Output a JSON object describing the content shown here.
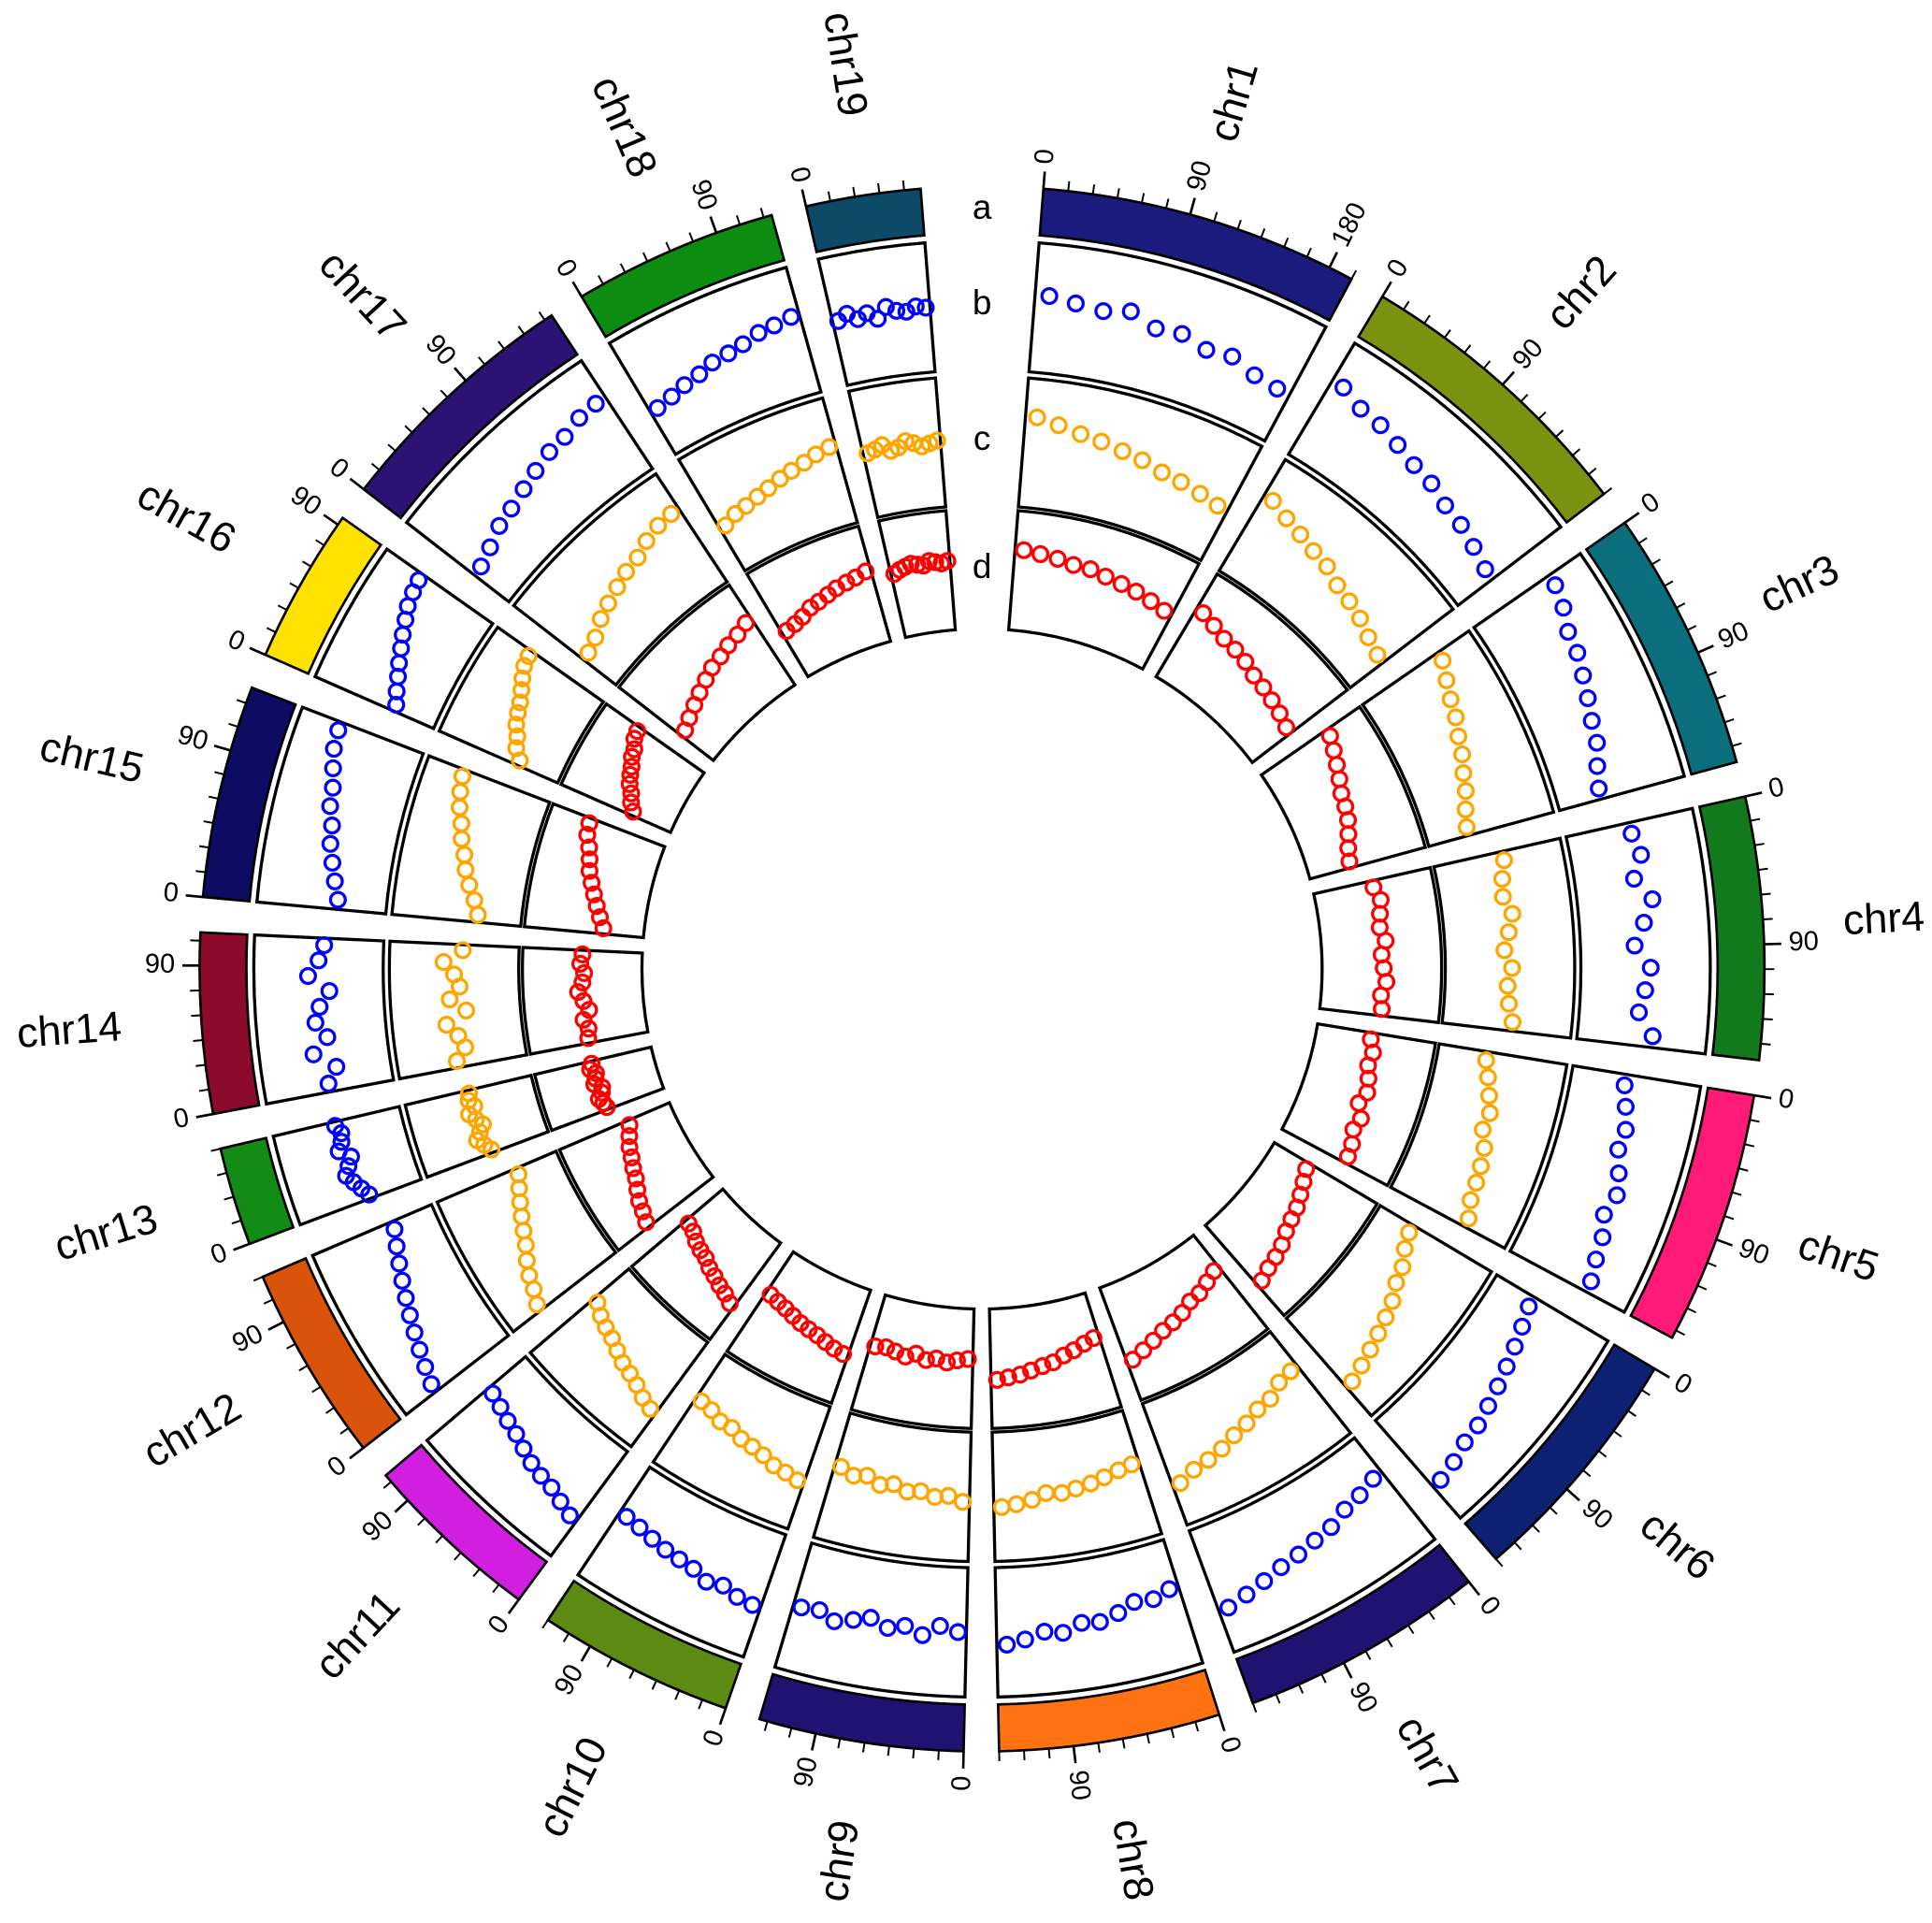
{
  "chart_data": {
    "type": "circos",
    "ideogram_label": "a",
    "minor_tick_interval": 15,
    "chromosomes": [
      {
        "name": "chr1",
        "length": 195,
        "color": "#1b1b7e",
        "ticks": [
          0,
          90,
          180
        ],
        "x": [
          10,
          29,
          49,
          68,
          88,
          107,
          127,
          146,
          166,
          185
        ]
      },
      {
        "name": "chr2",
        "length": 180,
        "color": "#7b9210",
        "ticks": [
          0,
          90
        ],
        "x": [
          9,
          27,
          45,
          63,
          81,
          99,
          117,
          135,
          153,
          171
        ]
      },
      {
        "name": "chr3",
        "length": 160,
        "color": "#0a6e7c",
        "ticks": [
          0,
          90
        ],
        "x": [
          8,
          24,
          40,
          56,
          72,
          88,
          104,
          120,
          136,
          152
        ]
      },
      {
        "name": "chr4",
        "length": 160,
        "color": "#127a1c",
        "ticks": [
          0,
          90
        ],
        "x": [
          8,
          24,
          40,
          56,
          72,
          88,
          104,
          120,
          136,
          152
        ]
      },
      {
        "name": "chr5",
        "length": 155,
        "color": "#ff1a78",
        "ticks": [
          0,
          90
        ],
        "x": [
          8,
          23,
          39,
          54,
          70,
          85,
          101,
          116,
          132,
          147
        ]
      },
      {
        "name": "chr6",
        "length": 150,
        "color": "#0d2072",
        "ticks": [
          0,
          90
        ],
        "x": [
          8,
          23,
          38,
          53,
          68,
          83,
          98,
          113,
          128,
          143
        ]
      },
      {
        "name": "chr7",
        "length": 150,
        "color": "#1f1270",
        "ticks": [
          0,
          90
        ],
        "x": [
          8,
          23,
          38,
          53,
          68,
          83,
          98,
          113,
          128,
          143
        ]
      },
      {
        "name": "chr8",
        "length": 135,
        "color": "#ff7212",
        "ticks": [
          0,
          90
        ],
        "x": [
          7,
          20,
          34,
          47,
          61,
          74,
          88,
          101,
          115,
          128
        ]
      },
      {
        "name": "chr9",
        "length": 125,
        "color": "#1f1270",
        "ticks": [
          0,
          90
        ],
        "x": [
          6,
          19,
          31,
          44,
          56,
          69,
          81,
          94,
          106,
          119
        ]
      },
      {
        "name": "chr10",
        "length": 120,
        "color": "#5c8a12",
        "ticks": [
          0,
          90
        ],
        "x": [
          6,
          18,
          30,
          42,
          54,
          66,
          78,
          90,
          102,
          114
        ]
      },
      {
        "name": "chr11",
        "length": 110,
        "color": "#d21ee0",
        "ticks": [
          0,
          90
        ],
        "x": [
          6,
          17,
          28,
          39,
          50,
          61,
          72,
          83,
          94,
          105
        ]
      },
      {
        "name": "chr12",
        "length": 120,
        "color": "#d9540a",
        "ticks": [
          0,
          90
        ],
        "x": [
          6,
          18,
          30,
          42,
          54,
          66,
          78,
          90,
          102,
          114
        ]
      },
      {
        "name": "chr13",
        "length": 60,
        "color": "#128c14",
        "ticks": [
          0
        ],
        "x": [
          3,
          9,
          15,
          21,
          27,
          33,
          39,
          45,
          51,
          57
        ]
      },
      {
        "name": "chr14",
        "length": 110,
        "color": "#8c0a2c",
        "ticks": [
          0,
          90
        ],
        "x": [
          6,
          17,
          28,
          39,
          50,
          61,
          72,
          83,
          94,
          105
        ]
      },
      {
        "name": "chr15",
        "length": 130,
        "color": "#0c0c62",
        "ticks": [
          0,
          90
        ],
        "x": [
          7,
          20,
          33,
          46,
          59,
          72,
          85,
          98,
          111,
          124
        ]
      },
      {
        "name": "chr16",
        "length": 95,
        "color": "#ffe200",
        "ticks": [
          0,
          90
        ],
        "x": [
          5,
          14,
          24,
          33,
          43,
          52,
          62,
          71,
          81,
          90
        ]
      },
      {
        "name": "chr17",
        "length": 155,
        "color": "#2c1272",
        "ticks": [
          0,
          90
        ],
        "x": [
          8,
          23,
          39,
          54,
          70,
          85,
          101,
          116,
          132,
          147
        ]
      },
      {
        "name": "chr18",
        "length": 125,
        "color": "#0c8c10",
        "ticks": [
          0,
          90
        ],
        "x": [
          6,
          19,
          31,
          44,
          56,
          69,
          81,
          94,
          106,
          119
        ]
      },
      {
        "name": "chr19",
        "length": 70,
        "color": "#0c4a68",
        "ticks": [
          0
        ],
        "x": [
          4,
          11,
          18,
          25,
          32,
          39,
          46,
          53,
          60,
          67
        ]
      }
    ],
    "tracks": [
      {
        "label": "b",
        "color": "#0000ff",
        "ylim": [
          0,
          1
        ],
        "values": [
          [
            0.62,
            0.58,
            0.55,
            0.6,
            0.5,
            0.52,
            0.45,
            0.48,
            0.4,
            0.38
          ],
          [
            0.7,
            0.62,
            0.6,
            0.55,
            0.5,
            0.48,
            0.42,
            0.4,
            0.35,
            0.3
          ],
          [
            0.75,
            0.7,
            0.62,
            0.6,
            0.55,
            0.5,
            0.45,
            0.42,
            0.35,
            0.3
          ],
          [
            0.5,
            0.55,
            0.45,
            0.6,
            0.5,
            0.4,
            0.55,
            0.5,
            0.45,
            0.6
          ],
          [
            0.4,
            0.45,
            0.5,
            0.48,
            0.55,
            0.6,
            0.55,
            0.62,
            0.65,
            0.7
          ],
          [
            0.3,
            0.35,
            0.4,
            0.45,
            0.5,
            0.55,
            0.6,
            0.62,
            0.68,
            0.72
          ],
          [
            0.3,
            0.35,
            0.38,
            0.45,
            0.48,
            0.52,
            0.55,
            0.6,
            0.65,
            0.7
          ],
          [
            0.35,
            0.4,
            0.38,
            0.45,
            0.5,
            0.48,
            0.55,
            0.52,
            0.58,
            0.62
          ],
          [
            0.5,
            0.45,
            0.55,
            0.48,
            0.52,
            0.45,
            0.5,
            0.55,
            0.48,
            0.5
          ],
          [
            0.62,
            0.6,
            0.55,
            0.58,
            0.52,
            0.5,
            0.48,
            0.45,
            0.42,
            0.4
          ],
          [
            0.7,
            0.65,
            0.6,
            0.58,
            0.55,
            0.5,
            0.45,
            0.42,
            0.38,
            0.35
          ],
          [
            0.75,
            0.7,
            0.65,
            0.6,
            0.55,
            0.5,
            0.45,
            0.4,
            0.35,
            0.3
          ],
          [
            0.4,
            0.45,
            0.5,
            0.55,
            0.5,
            0.45,
            0.55,
            0.5,
            0.48,
            0.52
          ],
          [
            0.5,
            0.4,
            0.6,
            0.45,
            0.55,
            0.5,
            0.4,
            0.6,
            0.5,
            0.45
          ],
          [
            0.35,
            0.4,
            0.45,
            0.5,
            0.52,
            0.58,
            0.6,
            0.65,
            0.7,
            0.72
          ],
          [
            0.3,
            0.35,
            0.4,
            0.45,
            0.5,
            0.55,
            0.6,
            0.65,
            0.68,
            0.7
          ],
          [
            0.3,
            0.35,
            0.42,
            0.45,
            0.5,
            0.55,
            0.6,
            0.62,
            0.68,
            0.7
          ],
          [
            0.35,
            0.38,
            0.42,
            0.45,
            0.5,
            0.52,
            0.55,
            0.6,
            0.62,
            0.65
          ],
          [
            0.5,
            0.55,
            0.48,
            0.52,
            0.45,
            0.55,
            0.5,
            0.48,
            0.52,
            0.5
          ]
        ]
      },
      {
        "label": "c",
        "color": "#ffa500",
        "ylim": [
          0,
          1
        ],
        "values": [
          [
            0.75,
            0.7,
            0.65,
            0.62,
            0.58,
            0.55,
            0.5,
            0.48,
            0.45,
            0.42
          ],
          [
            0.72,
            0.65,
            0.6,
            0.55,
            0.52,
            0.45,
            0.42,
            0.38,
            0.32,
            0.28
          ],
          [
            0.75,
            0.68,
            0.62,
            0.58,
            0.52,
            0.48,
            0.42,
            0.38,
            0.32,
            0.28
          ],
          [
            0.55,
            0.5,
            0.48,
            0.55,
            0.5,
            0.45,
            0.52,
            0.48,
            0.5,
            0.55
          ],
          [
            0.35,
            0.4,
            0.45,
            0.5,
            0.48,
            0.55,
            0.58,
            0.6,
            0.62,
            0.68
          ],
          [
            0.25,
            0.3,
            0.38,
            0.42,
            0.5,
            0.55,
            0.6,
            0.65,
            0.7,
            0.75
          ],
          [
            0.3,
            0.32,
            0.4,
            0.42,
            0.48,
            0.52,
            0.58,
            0.62,
            0.65,
            0.72
          ],
          [
            0.4,
            0.42,
            0.45,
            0.48,
            0.5,
            0.52,
            0.5,
            0.55,
            0.58,
            0.6
          ],
          [
            0.55,
            0.5,
            0.52,
            0.48,
            0.5,
            0.45,
            0.48,
            0.42,
            0.45,
            0.4
          ],
          [
            0.65,
            0.62,
            0.6,
            0.55,
            0.52,
            0.5,
            0.45,
            0.45,
            0.4,
            0.38
          ],
          [
            0.72,
            0.68,
            0.62,
            0.58,
            0.55,
            0.5,
            0.45,
            0.42,
            0.38,
            0.32
          ],
          [
            0.78,
            0.72,
            0.68,
            0.62,
            0.55,
            0.5,
            0.45,
            0.4,
            0.35,
            0.3
          ],
          [
            0.45,
            0.5,
            0.55,
            0.5,
            0.45,
            0.5,
            0.55,
            0.48,
            0.52,
            0.5
          ],
          [
            0.55,
            0.45,
            0.5,
            0.6,
            0.4,
            0.55,
            0.45,
            0.5,
            0.6,
            0.42
          ],
          [
            0.3,
            0.35,
            0.42,
            0.48,
            0.52,
            0.58,
            0.62,
            0.68,
            0.72,
            0.75
          ],
          [
            0.3,
            0.38,
            0.42,
            0.48,
            0.52,
            0.55,
            0.6,
            0.65,
            0.7,
            0.72
          ],
          [
            0.28,
            0.32,
            0.4,
            0.45,
            0.5,
            0.55,
            0.58,
            0.65,
            0.7,
            0.72
          ],
          [
            0.35,
            0.4,
            0.42,
            0.45,
            0.48,
            0.52,
            0.55,
            0.58,
            0.62,
            0.65
          ],
          [
            0.5,
            0.52,
            0.55,
            0.48,
            0.5,
            0.55,
            0.52,
            0.48,
            0.5,
            0.52
          ]
        ]
      },
      {
        "label": "d",
        "color": "#ff0000",
        "ylim": [
          0,
          1
        ],
        "values": [
          [
            0.72,
            0.7,
            0.68,
            0.65,
            0.65,
            0.62,
            0.6,
            0.58,
            0.55,
            0.52
          ],
          [
            0.7,
            0.65,
            0.6,
            0.58,
            0.55,
            0.5,
            0.48,
            0.45,
            0.42,
            0.38
          ],
          [
            0.7,
            0.65,
            0.6,
            0.55,
            0.5,
            0.48,
            0.45,
            0.4,
            0.35,
            0.32
          ],
          [
            0.5,
            0.55,
            0.52,
            0.5,
            0.55,
            0.5,
            0.52,
            0.55,
            0.5,
            0.52
          ],
          [
            0.45,
            0.5,
            0.48,
            0.52,
            0.55,
            0.5,
            0.58,
            0.55,
            0.6,
            0.62
          ],
          [
            0.3,
            0.35,
            0.4,
            0.45,
            0.48,
            0.52,
            0.58,
            0.62,
            0.65,
            0.7
          ],
          [
            0.3,
            0.35,
            0.4,
            0.42,
            0.48,
            0.52,
            0.55,
            0.6,
            0.65,
            0.7
          ],
          [
            0.35,
            0.38,
            0.42,
            0.45,
            0.5,
            0.52,
            0.55,
            0.58,
            0.6,
            0.62
          ],
          [
            0.4,
            0.42,
            0.45,
            0.42,
            0.45,
            0.4,
            0.45,
            0.42,
            0.4,
            0.42
          ],
          [
            0.6,
            0.58,
            0.55,
            0.52,
            0.5,
            0.48,
            0.45,
            0.42,
            0.4,
            0.38
          ],
          [
            0.7,
            0.65,
            0.62,
            0.58,
            0.55,
            0.5,
            0.48,
            0.45,
            0.4,
            0.38
          ],
          [
            0.72,
            0.68,
            0.65,
            0.6,
            0.55,
            0.52,
            0.48,
            0.45,
            0.4,
            0.35
          ],
          [
            0.5,
            0.52,
            0.55,
            0.5,
            0.48,
            0.55,
            0.52,
            0.5,
            0.55,
            0.52
          ],
          [
            0.5,
            0.48,
            0.52,
            0.45,
            0.5,
            0.55,
            0.5,
            0.48,
            0.52,
            0.5
          ],
          [
            0.3,
            0.35,
            0.4,
            0.45,
            0.5,
            0.55,
            0.58,
            0.62,
            0.68,
            0.7
          ],
          [
            0.32,
            0.38,
            0.42,
            0.48,
            0.52,
            0.55,
            0.6,
            0.62,
            0.68,
            0.7
          ],
          [
            0.3,
            0.35,
            0.4,
            0.45,
            0.5,
            0.55,
            0.58,
            0.62,
            0.65,
            0.7
          ],
          [
            0.4,
            0.42,
            0.45,
            0.5,
            0.52,
            0.55,
            0.58,
            0.6,
            0.62,
            0.65
          ],
          [
            0.55,
            0.58,
            0.6,
            0.62,
            0.6,
            0.58,
            0.62,
            0.6,
            0.58,
            0.6
          ]
        ]
      }
    ]
  }
}
